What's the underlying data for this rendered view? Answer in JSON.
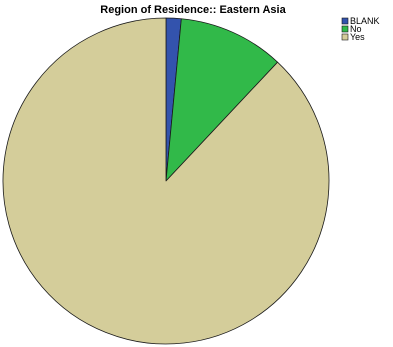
{
  "chart_data": {
    "type": "pie",
    "title": "Region of Residence:: Eastern Asia",
    "categories": [
      "BLANK",
      "No",
      "Yes"
    ],
    "values": [
      1.5,
      10.5,
      88.0
    ],
    "colors": [
      "#3353ad",
      "#31b949",
      "#d4cd9a"
    ],
    "legend_position": "top-right",
    "start_angle_deg": 0,
    "direction": "clockwise"
  }
}
